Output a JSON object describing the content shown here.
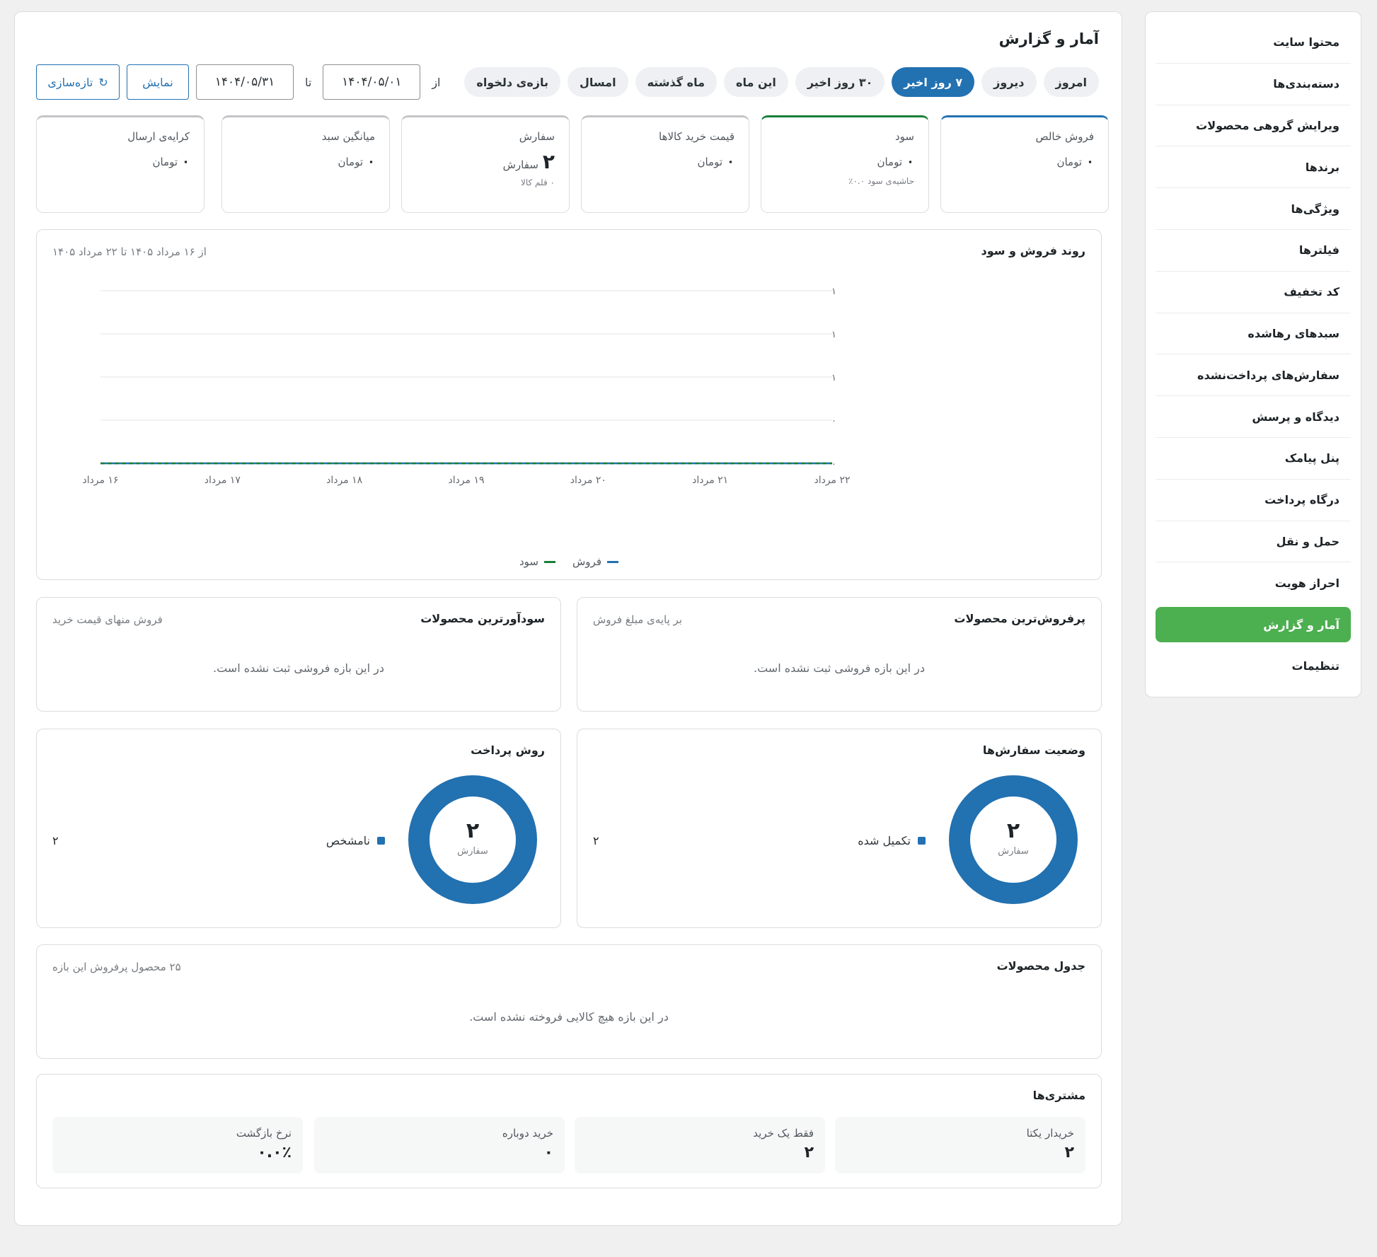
{
  "sidebar": {
    "items": [
      {
        "label": "محتوا سایت"
      },
      {
        "label": "دسته‌بندی‌ها"
      },
      {
        "label": "ویرایش گروهی محصولات"
      },
      {
        "label": "برندها"
      },
      {
        "label": "ویژگی‌ها"
      },
      {
        "label": "فیلترها"
      },
      {
        "label": "کد تخفیف"
      },
      {
        "label": "سبدهای رهاشده"
      },
      {
        "label": "سفارش‌های پرداخت‌نشده"
      },
      {
        "label": "دیدگاه و پرسش"
      },
      {
        "label": "پنل پیامک"
      },
      {
        "label": "درگاه پرداخت"
      },
      {
        "label": "حمل و نقل"
      },
      {
        "label": "احراز هویت"
      },
      {
        "label": "آمار و گزارش"
      },
      {
        "label": "تنظیمات"
      }
    ],
    "active_label": "آمار و گزارش"
  },
  "page": {
    "title": "آمار و گزارش"
  },
  "presets": [
    {
      "label": "امروز"
    },
    {
      "label": "دیروز"
    },
    {
      "label": "۷ روز اخیر"
    },
    {
      "label": "۳۰ روز اخیر"
    },
    {
      "label": "این ماه"
    },
    {
      "label": "ماه گذشته"
    },
    {
      "label": "امسال"
    },
    {
      "label": "بازه‌ی دلخواه"
    }
  ],
  "active_preset": "۷ روز اخیر",
  "date_range": {
    "from_label": "از",
    "from_value": "۱۴۰۴/۰۵/۰۱",
    "to_label": "تا",
    "to_value": "۱۴۰۴/۰۵/۳۱",
    "show_label": "نمایش",
    "refresh_label": "تازه‌سازی",
    "refresh_icon": "↻"
  },
  "kpis": [
    {
      "label": "فروش خالص",
      "value": "۰",
      "unit": "تومان",
      "sub": ""
    },
    {
      "label": "سود",
      "value": "۰",
      "unit": "تومان",
      "sub": "حاشیه‌ی سود ۰.۰٪"
    },
    {
      "label": "قیمت خرید کالاها",
      "value": "۰",
      "unit": "تومان",
      "sub": ""
    },
    {
      "label": "سفارش",
      "value": "۲",
      "unit": "سفارش",
      "sub": "۰ قلم کالا"
    },
    {
      "label": "میانگین سبد",
      "value": "۰",
      "unit": "تومان",
      "sub": ""
    },
    {
      "label": "کرایه‌ی ارسال",
      "value": "۰",
      "unit": "تومان",
      "sub": ""
    }
  ],
  "trend": {
    "title": "روند فروش و سود",
    "range_note": "از ۱۶ مرداد ۱۴۰۵ تا ۲۲ مرداد ۱۴۰۵"
  },
  "chart_data": {
    "type": "line",
    "title": "روند فروش و سود",
    "x": [
      "۱۶ مرداد",
      "۱۷ مرداد",
      "۱۸ مرداد",
      "۱۹ مرداد",
      "۲۰ مرداد",
      "۲۱ مرداد",
      "۲۲ مرداد"
    ],
    "series": [
      {
        "name": "فروش",
        "values": [
          0,
          0,
          0,
          0,
          0,
          0,
          0
        ],
        "color": "#2271b1"
      },
      {
        "name": "سود",
        "values": [
          0,
          0,
          0,
          0,
          0,
          0,
          0
        ],
        "color": "#1a7f37"
      }
    ],
    "y_ticks": [
      "۱",
      "۱",
      "۱",
      "۰",
      "۰"
    ],
    "ylim": [
      0,
      1
    ],
    "grid": true,
    "legend_position": "bottom"
  },
  "top_sellers": {
    "title": "پرفروش‌ترین محصولات",
    "note": "بر پایه‌ی مبلغ فروش",
    "empty": "در این بازه فروشی ثبت نشده است."
  },
  "top_profit": {
    "title": "سودآورترین محصولات",
    "note": "فروش منهای قیمت خرید",
    "empty": "در این بازه فروشی ثبت نشده است."
  },
  "order_status": {
    "title": "وضعیت سفارش‌ها",
    "total": "۲",
    "total_label": "سفارش",
    "legend": [
      {
        "label": "تکمیل شده",
        "count": "۲",
        "color": "#2271b1"
      }
    ]
  },
  "payment_method": {
    "title": "روش پرداخت",
    "total": "۲",
    "total_label": "سفارش",
    "legend": [
      {
        "label": "نامشخص",
        "count": "۲",
        "color": "#2271b1"
      }
    ]
  },
  "products_table": {
    "title": "جدول محصولات",
    "note": "۲۵ محصول پرفروش این بازه",
    "empty": "در این بازه هیچ کالایی فروخته نشده است."
  },
  "customers": {
    "title": "مشتری‌ها",
    "stats": [
      {
        "label": "خریدار یکتا",
        "value": "۲"
      },
      {
        "label": "فقط یک خرید",
        "value": "۲"
      },
      {
        "label": "خرید دوباره",
        "value": "۰"
      },
      {
        "label": "نرخ بازگشت",
        "value": "۰.۰٪"
      }
    ]
  }
}
